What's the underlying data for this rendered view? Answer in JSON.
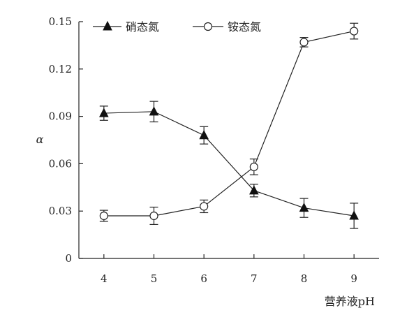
{
  "chart_data": {
    "type": "line",
    "x": [
      4,
      5,
      6,
      7,
      8,
      9
    ],
    "xlim": [
      3.5,
      9.5
    ],
    "ylim": [
      0,
      0.15
    ],
    "yticks": [
      0,
      0.03,
      0.06,
      0.09,
      0.12,
      0.15
    ],
    "ytick_labels": [
      "0",
      "0.03",
      "0.06",
      "0.09",
      "0.12",
      "0.15"
    ],
    "xtick_labels": [
      "4",
      "5",
      "6",
      "7",
      "8",
      "9"
    ],
    "xlabel": "营养液pH",
    "ylabel": "α",
    "legend_placement": "top",
    "grid": false,
    "series": [
      {
        "name": "硝态氮",
        "marker": "filled-triangle",
        "values": [
          0.092,
          0.093,
          0.078,
          0.043,
          0.032,
          0.027
        ],
        "errors": [
          0.0045,
          0.0065,
          0.0055,
          0.004,
          0.006,
          0.008
        ]
      },
      {
        "name": "铵态氮",
        "marker": "open-circle",
        "values": [
          0.027,
          0.027,
          0.033,
          0.058,
          0.137,
          0.144
        ],
        "errors": [
          0.0035,
          0.0055,
          0.004,
          0.005,
          0.003,
          0.005
        ]
      }
    ]
  }
}
